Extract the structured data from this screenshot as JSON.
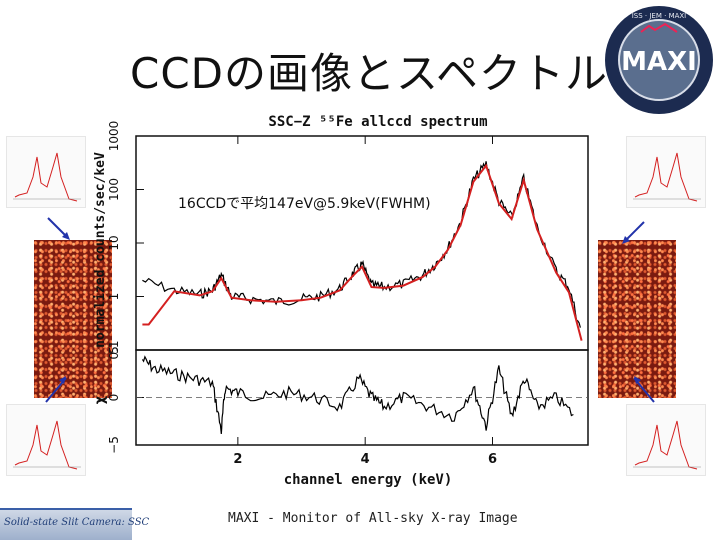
{
  "slide": {
    "title": "CCDの画像とスペクトル",
    "footer": "MAXI - Monitor of All-sky X-ray Image",
    "footer_logo_text": "Solid-state Slit Camera: SSC"
  },
  "logo": {
    "text": "MAXI",
    "ring_text": "ISS · JEM · MAXI"
  },
  "colors": {
    "model": "#d42020",
    "data": "#000000",
    "ccd": "#7a1a10",
    "arrow": "#2233aa"
  },
  "chart_data": {
    "type": "line",
    "title": "SSC−Z ⁵⁵Fe allccd spectrum",
    "annotation": "16CCDで平均147eV@5.9keV(FWHM)",
    "xlabel": "channel energy (keV)",
    "top_panel": {
      "ylabel": "normalized counts/sec/keV",
      "yscale": "log",
      "ylim": [
        0.1,
        1000
      ],
      "yticks": [
        "0.1",
        "1",
        "10",
        "100",
        "1000"
      ],
      "series": [
        {
          "name": "data",
          "x": [
            0.5,
            1.0,
            1.4,
            1.6,
            1.74,
            1.9,
            2.2,
            2.6,
            3.0,
            3.3,
            3.6,
            3.8,
            3.95,
            4.1,
            4.3,
            4.6,
            4.9,
            5.1,
            5.3,
            5.5,
            5.7,
            5.9,
            6.1,
            6.3,
            6.49,
            6.7,
            7.0,
            7.2,
            7.4
          ],
          "y": [
            2.0,
            1.3,
            1.1,
            1.3,
            2.5,
            1.0,
            0.9,
            0.8,
            0.9,
            1.0,
            1.4,
            2.6,
            4.0,
            1.6,
            1.5,
            1.7,
            2.5,
            4.0,
            8.0,
            25,
            150,
            300,
            60,
            30,
            160,
            20,
            3,
            1.5,
            0.2
          ]
        },
        {
          "name": "model",
          "x": [
            0.5,
            0.6,
            1.0,
            1.4,
            1.6,
            1.74,
            1.9,
            2.2,
            2.6,
            3.0,
            3.3,
            3.6,
            3.8,
            3.95,
            4.1,
            4.3,
            4.6,
            4.9,
            5.1,
            5.3,
            5.5,
            5.7,
            5.9,
            6.1,
            6.3,
            6.49,
            6.7,
            7.0,
            7.2,
            7.4
          ],
          "y": [
            0.3,
            0.3,
            1.25,
            1.05,
            1.25,
            2.2,
            0.95,
            0.85,
            0.8,
            0.85,
            0.95,
            1.3,
            2.4,
            3.6,
            1.5,
            1.45,
            1.6,
            2.3,
            3.6,
            7.5,
            22,
            140,
            280,
            55,
            28,
            150,
            18,
            2.8,
            1.2,
            0.15
          ]
        }
      ]
    },
    "bottom_panel": {
      "ylabel": "χ",
      "ylim": [
        -5,
        5
      ],
      "yticks": [
        "−5",
        "0",
        "5"
      ],
      "series": [
        {
          "name": "residual",
          "x": [
            0.5,
            0.7,
            1.0,
            1.3,
            1.6,
            1.74,
            1.8,
            2.0,
            2.4,
            2.8,
            3.2,
            3.6,
            3.9,
            4.1,
            4.3,
            4.6,
            5.0,
            5.4,
            5.7,
            5.9,
            6.1,
            6.3,
            6.5,
            6.7,
            7.0,
            7.3
          ],
          "y": [
            4,
            3,
            2.5,
            2,
            1.5,
            -3.5,
            1,
            0.5,
            0,
            0.5,
            0,
            -1,
            2,
            0,
            -1,
            0,
            -1,
            -2,
            1,
            -3,
            3,
            -2,
            2,
            -1,
            0,
            -2
          ]
        }
      ]
    },
    "xlim": [
      0.4,
      7.5
    ],
    "xticks": [
      "2",
      "4",
      "6"
    ],
    "xtick_values": [
      2,
      4,
      6
    ]
  }
}
